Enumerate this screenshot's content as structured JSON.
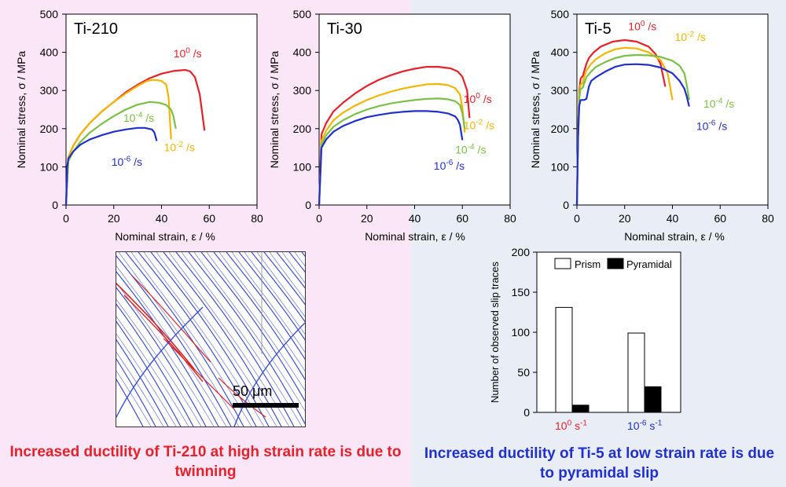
{
  "captions": {
    "left": "Increased ductility of Ti-210 at high strain rate is due to twinning",
    "right": "Increased ductility of Ti-5 at low strain rate is due to pyramidal slip"
  },
  "micrograph": {
    "scale_label": "50 μm"
  },
  "colors": {
    "red": "#e8202a",
    "orange": "#f2b600",
    "green": "#7ac143",
    "blue": "#1f2fd0"
  },
  "chart_data": [
    {
      "type": "line",
      "title": "Ti-210",
      "xlabel": "Nominal strain, ε / %",
      "ylabel": "Nominal stress, σ / MPa",
      "xlim": [
        0,
        80
      ],
      "ylim": [
        0,
        500
      ],
      "xticks": [
        "0",
        "20",
        "40",
        "60",
        "80"
      ],
      "yticks": [
        "0",
        "100",
        "200",
        "300",
        "400",
        "500"
      ],
      "series": [
        {
          "name": "10^0 /s",
          "color": "red",
          "x": [
            0,
            1,
            3,
            6,
            10,
            15,
            20,
            25,
            30,
            35,
            40,
            45,
            50,
            52,
            54,
            56,
            58
          ],
          "y": [
            0,
            125,
            155,
            185,
            215,
            245,
            270,
            295,
            315,
            332,
            344,
            351,
            354,
            350,
            335,
            290,
            195
          ]
        },
        {
          "name": "10^-2 /s",
          "color": "orange",
          "x": [
            0,
            1,
            3,
            6,
            10,
            15,
            20,
            25,
            30,
            34,
            37,
            40,
            42,
            43,
            44
          ],
          "y": [
            0,
            125,
            155,
            185,
            215,
            245,
            270,
            292,
            312,
            325,
            328,
            325,
            315,
            280,
            172
          ]
        },
        {
          "name": "10^-4 /s",
          "color": "green",
          "x": [
            0,
            1,
            3,
            6,
            10,
            15,
            20,
            25,
            30,
            35,
            39,
            42,
            44,
            45,
            46
          ],
          "y": [
            0,
            115,
            140,
            165,
            190,
            213,
            233,
            250,
            263,
            270,
            268,
            262,
            250,
            232,
            200
          ]
        },
        {
          "name": "10^-6 /s",
          "color": "blue",
          "x": [
            0,
            0.5,
            1,
            3,
            6,
            10,
            15,
            20,
            25,
            30,
            33,
            36,
            37,
            38
          ],
          "y": [
            0,
            100,
            122,
            140,
            158,
            172,
            183,
            192,
            198,
            202,
            202,
            198,
            190,
            168
          ]
        }
      ],
      "labels": [
        {
          "base": "10",
          "exp": "0",
          "unit": " /s",
          "color": "red",
          "x": 45,
          "y": 387
        },
        {
          "base": "10",
          "exp": "-2",
          "unit": " /s",
          "color": "orange",
          "x": 41,
          "y": 141
        },
        {
          "base": "10",
          "exp": "-4",
          "unit": " /s",
          "color": "green",
          "x": 24,
          "y": 218
        },
        {
          "base": "10",
          "exp": "-6",
          "unit": " /s",
          "color": "blue",
          "x": 19,
          "y": 103
        }
      ]
    },
    {
      "type": "line",
      "title": "Ti-30",
      "xlabel": "Nominal strain, ε / %",
      "ylabel": "Nominal stress, σ / MPa",
      "xlim": [
        0,
        80
      ],
      "ylim": [
        0,
        500
      ],
      "xticks": [
        "0",
        "20",
        "40",
        "60",
        "80"
      ],
      "yticks": [
        "0",
        "100",
        "200",
        "300",
        "400",
        "500"
      ],
      "series": [
        {
          "name": "10^0 /s",
          "color": "red",
          "x": [
            0,
            1,
            3,
            6,
            10,
            15,
            20,
            25,
            30,
            35,
            40,
            45,
            50,
            55,
            58,
            60,
            62,
            63
          ],
          "y": [
            0,
            185,
            215,
            245,
            268,
            292,
            312,
            328,
            340,
            350,
            357,
            362,
            362,
            358,
            350,
            336,
            300,
            228
          ]
        },
        {
          "name": "10^-2 /s",
          "color": "orange",
          "x": [
            0,
            1,
            3,
            6,
            10,
            15,
            20,
            25,
            30,
            35,
            40,
            45,
            50,
            54,
            57,
            59,
            60,
            61
          ],
          "y": [
            0,
            168,
            195,
            222,
            242,
            260,
            275,
            287,
            297,
            305,
            311,
            316,
            317,
            314,
            306,
            290,
            255,
            190
          ]
        },
        {
          "name": "10^-4 /s",
          "color": "green",
          "x": [
            0,
            1,
            3,
            6,
            10,
            15,
            20,
            25,
            30,
            35,
            40,
            45,
            50,
            54,
            57,
            59,
            60,
            61
          ],
          "y": [
            0,
            158,
            183,
            205,
            222,
            238,
            250,
            259,
            266,
            271,
            275,
            278,
            279,
            277,
            272,
            262,
            240,
            200
          ]
        },
        {
          "name": "10^-6 /s",
          "color": "blue",
          "x": [
            0,
            1,
            3,
            6,
            10,
            15,
            20,
            25,
            30,
            35,
            40,
            45,
            50,
            54,
            57,
            58,
            59,
            60
          ],
          "y": [
            0,
            150,
            172,
            192,
            207,
            220,
            230,
            236,
            241,
            244,
            246,
            246,
            244,
            240,
            232,
            224,
            210,
            170
          ]
        }
      ],
      "labels": [
        {
          "base": "10",
          "exp": "0",
          "unit": " /s",
          "color": "red",
          "x": 60.5,
          "y": 268
        },
        {
          "base": "10",
          "exp": "-2",
          "unit": " /s",
          "color": "orange",
          "x": 60.5,
          "y": 199
        },
        {
          "base": "10",
          "exp": "-4",
          "unit": " /s",
          "color": "green",
          "x": 57,
          "y": 135
        },
        {
          "base": "10",
          "exp": "-6",
          "unit": " /s",
          "color": "blue",
          "x": 48,
          "y": 93
        }
      ]
    },
    {
      "type": "line",
      "title": "Ti-5",
      "xlabel": "Nominal strain, ε / %",
      "ylabel": "Nominal stress, σ / MPa",
      "xlim": [
        0,
        80
      ],
      "ylim": [
        0,
        500
      ],
      "xticks": [
        "0",
        "20",
        "40",
        "60",
        "80"
      ],
      "yticks": [
        "0",
        "100",
        "200",
        "300",
        "400",
        "500"
      ],
      "series": [
        {
          "name": "10^0 /s",
          "color": "red",
          "x": [
            0,
            0.5,
            1,
            1.5,
            2,
            2.5,
            3,
            4,
            5,
            7,
            10,
            15,
            20,
            25,
            30,
            33,
            35,
            36,
            37
          ],
          "y": [
            0,
            200,
            300,
            330,
            335,
            338,
            350,
            370,
            385,
            400,
            415,
            428,
            432,
            428,
            415,
            395,
            370,
            340,
            310
          ]
        },
        {
          "name": "10^-2 /s",
          "color": "orange",
          "x": [
            0,
            0.5,
            1,
            1.5,
            2,
            2.5,
            3,
            4,
            6,
            8,
            12,
            16,
            20,
            25,
            30,
            35,
            38,
            39,
            40
          ],
          "y": [
            0,
            200,
            290,
            315,
            318,
            320,
            335,
            352,
            370,
            382,
            398,
            408,
            412,
            410,
            400,
            380,
            345,
            310,
            275
          ]
        },
        {
          "name": "10^-4 /s",
          "color": "green",
          "x": [
            0,
            0.5,
            1,
            1.5,
            2,
            2.5,
            3,
            4,
            6,
            8,
            12,
            16,
            20,
            25,
            30,
            35,
            40,
            43,
            45,
            46,
            47
          ],
          "y": [
            0,
            190,
            280,
            305,
            305,
            308,
            318,
            335,
            350,
            362,
            375,
            385,
            391,
            393,
            392,
            388,
            378,
            365,
            345,
            315,
            275
          ]
        },
        {
          "name": "10^-6 /s",
          "color": "blue",
          "x": [
            0,
            0.5,
            1,
            1.5,
            2,
            3,
            4,
            5,
            6,
            8,
            12,
            16,
            20,
            25,
            30,
            35,
            40,
            43,
            45,
            46,
            47
          ],
          "y": [
            0,
            180,
            260,
            275,
            275,
            275,
            278,
            310,
            325,
            335,
            350,
            362,
            368,
            369,
            367,
            360,
            345,
            325,
            305,
            285,
            258
          ]
        }
      ],
      "labels": [
        {
          "base": "10",
          "exp": "0",
          "unit": " /s",
          "color": "red",
          "x": 21.5,
          "y": 458
        },
        {
          "base": "10",
          "exp": "-2",
          "unit": " /s",
          "color": "orange",
          "x": 41,
          "y": 430
        },
        {
          "base": "10",
          "exp": "-4",
          "unit": " /s",
          "color": "green",
          "x": 53,
          "y": 255
        },
        {
          "base": "10",
          "exp": "-6",
          "unit": " /s",
          "color": "blue",
          "x": 50,
          "y": 197
        }
      ]
    },
    {
      "type": "bar",
      "ylabel": "Number of observed slip traces",
      "ylim": [
        0,
        200
      ],
      "yticks": [
        "0",
        "50",
        "100",
        "150",
        "200"
      ],
      "categories": [
        {
          "base": "10",
          "exp": "0",
          "unit": " s",
          "uexp": "-1",
          "color": "red"
        },
        {
          "base": "10",
          "exp": "-6",
          "unit": " s",
          "uexp": "-1",
          "color": "blue"
        }
      ],
      "series": [
        {
          "name": "Prism",
          "fill": "#ffffff",
          "values": [
            131,
            99
          ]
        },
        {
          "name": "Pyramidal",
          "fill": "#000000",
          "values": [
            9,
            32
          ]
        }
      ],
      "legend": "top"
    }
  ]
}
